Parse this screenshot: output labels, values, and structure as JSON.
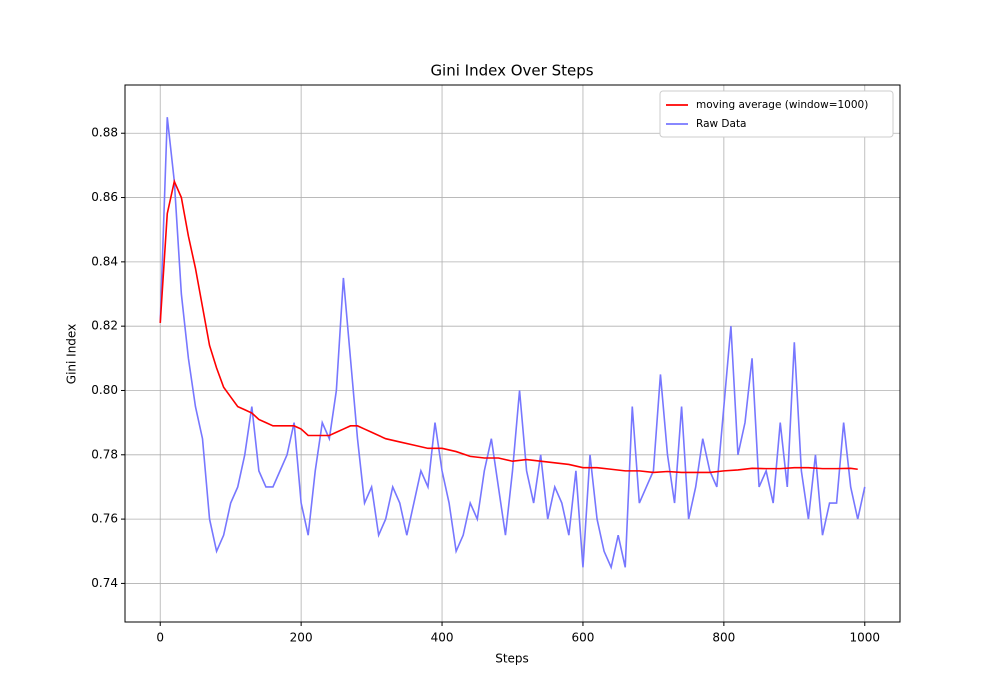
{
  "chart_data": {
    "type": "line",
    "title": "Gini Index Over Steps",
    "x_label": "Steps",
    "y_label": "Gini Index",
    "xlim": [
      -50,
      1050
    ],
    "xticks": [
      0,
      200,
      400,
      600,
      800,
      1000
    ],
    "ylim": [
      0.728,
      0.895
    ],
    "yticks": [
      0.74,
      0.76,
      0.78,
      {
        "value": 0.8,
        "label": "0.80"
      },
      0.82,
      0.84,
      0.86,
      0.88
    ],
    "grid": true,
    "legend": "upper right",
    "series": [
      {
        "name": "moving average (window=1000)",
        "color": "#ff0000",
        "x": [
          0,
          10,
          20,
          30,
          40,
          50,
          60,
          70,
          80,
          90,
          100,
          110,
          120,
          130,
          140,
          150,
          160,
          170,
          180,
          190,
          200,
          210,
          220,
          230,
          240,
          250,
          260,
          270,
          280,
          290,
          300,
          320,
          340,
          360,
          380,
          400,
          420,
          440,
          460,
          480,
          500,
          520,
          540,
          560,
          580,
          600,
          620,
          640,
          660,
          680,
          700,
          720,
          740,
          760,
          780,
          800,
          820,
          840,
          860,
          880,
          900,
          920,
          940,
          960,
          980,
          990
        ],
        "values": [
          0.821,
          0.855,
          0.865,
          0.86,
          0.848,
          0.838,
          0.826,
          0.814,
          0.807,
          0.801,
          0.798,
          0.795,
          0.794,
          0.793,
          0.791,
          0.79,
          0.789,
          0.789,
          0.789,
          0.789,
          0.788,
          0.786,
          0.786,
          0.786,
          0.786,
          0.787,
          0.788,
          0.789,
          0.789,
          0.788,
          0.787,
          0.785,
          0.784,
          0.783,
          0.782,
          0.782,
          0.781,
          0.7795,
          0.779,
          0.779,
          0.778,
          0.7785,
          0.778,
          0.7775,
          0.777,
          0.776,
          0.776,
          0.7755,
          0.775,
          0.775,
          0.7745,
          0.7748,
          0.7745,
          0.7745,
          0.7745,
          0.775,
          0.7753,
          0.7758,
          0.7757,
          0.7757,
          0.776,
          0.776,
          0.7757,
          0.7757,
          0.7758,
          0.7755
        ]
      },
      {
        "name": "Raw Data",
        "color": "#7777ff",
        "x": [
          0,
          10,
          20,
          30,
          40,
          50,
          60,
          70,
          80,
          90,
          100,
          110,
          120,
          130,
          140,
          150,
          160,
          170,
          180,
          190,
          200,
          210,
          220,
          230,
          240,
          250,
          260,
          270,
          280,
          290,
          300,
          310,
          320,
          330,
          340,
          350,
          360,
          370,
          380,
          390,
          400,
          410,
          420,
          430,
          440,
          450,
          460,
          470,
          480,
          490,
          500,
          510,
          520,
          530,
          540,
          550,
          560,
          570,
          580,
          590,
          600,
          610,
          620,
          630,
          640,
          650,
          660,
          670,
          680,
          690,
          700,
          710,
          720,
          730,
          740,
          750,
          760,
          770,
          780,
          790,
          800,
          810,
          820,
          830,
          840,
          850,
          860,
          870,
          880,
          890,
          900,
          910,
          920,
          930,
          940,
          950,
          960,
          970,
          980,
          990,
          1000
        ],
        "values": [
          0.821,
          0.885,
          0.865,
          0.83,
          0.81,
          0.795,
          0.785,
          0.76,
          0.75,
          0.755,
          0.765,
          0.77,
          0.78,
          0.795,
          0.775,
          0.77,
          0.77,
          0.775,
          0.78,
          0.79,
          0.765,
          0.755,
          0.775,
          0.79,
          0.785,
          0.8,
          0.835,
          0.81,
          0.785,
          0.765,
          0.77,
          0.755,
          0.76,
          0.77,
          0.765,
          0.755,
          0.765,
          0.775,
          0.77,
          0.79,
          0.775,
          0.765,
          0.75,
          0.755,
          0.765,
          0.76,
          0.775,
          0.785,
          0.77,
          0.755,
          0.775,
          0.8,
          0.775,
          0.765,
          0.78,
          0.76,
          0.77,
          0.765,
          0.755,
          0.775,
          0.745,
          0.78,
          0.76,
          0.75,
          0.745,
          0.755,
          0.745,
          0.795,
          0.765,
          0.77,
          0.775,
          0.805,
          0.78,
          0.765,
          0.795,
          0.76,
          0.77,
          0.785,
          0.775,
          0.77,
          0.795,
          0.82,
          0.78,
          0.79,
          0.81,
          0.77,
          0.775,
          0.765,
          0.79,
          0.77,
          0.815,
          0.775,
          0.76,
          0.78,
          0.755,
          0.765,
          0.765,
          0.79,
          0.77,
          0.76,
          0.77
        ]
      }
    ]
  }
}
